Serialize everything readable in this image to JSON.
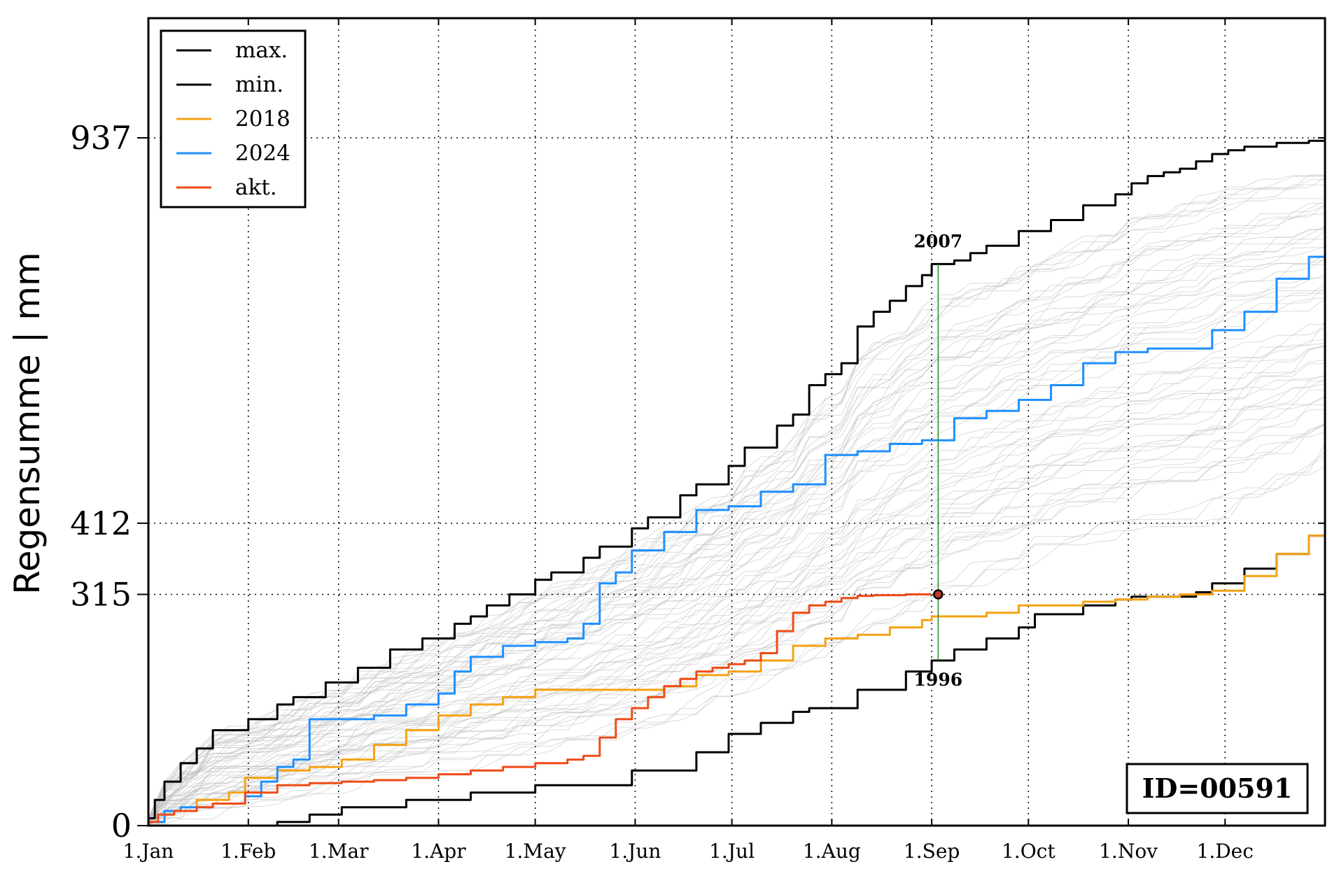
{
  "chart_data": {
    "type": "line",
    "title": "",
    "xlabel": "",
    "ylabel": "Regensumme | mm",
    "xlim": [
      0,
      365
    ],
    "ylim": [
      0,
      1100
    ],
    "x_ticks": [
      {
        "day": 0,
        "label": "1.Jan"
      },
      {
        "day": 31,
        "label": "1.Feb"
      },
      {
        "day": 59,
        "label": "1.Mar"
      },
      {
        "day": 90,
        "label": "1.Apr"
      },
      {
        "day": 120,
        "label": "1.May"
      },
      {
        "day": 151,
        "label": "1.Jun"
      },
      {
        "day": 181,
        "label": "1.Jul"
      },
      {
        "day": 212,
        "label": "1.Aug"
      },
      {
        "day": 243,
        "label": "1.Sep"
      },
      {
        "day": 273,
        "label": "1.Oct"
      },
      {
        "day": 304,
        "label": "1.Nov"
      },
      {
        "day": 334,
        "label": "1.Dec"
      }
    ],
    "y_ticks": [
      0,
      315,
      412,
      937
    ],
    "grid": "dotted",
    "legend_position": "top-left",
    "series": [
      {
        "name": "max.",
        "color": "#000000",
        "x": [
          0,
          2,
          5,
          10,
          15,
          20,
          31,
          40,
          45,
          55,
          65,
          75,
          85,
          95,
          100,
          105,
          112,
          120,
          125,
          135,
          140,
          150,
          155,
          165,
          170,
          180,
          185,
          195,
          200,
          205,
          210,
          215,
          220,
          225,
          230,
          235,
          240,
          243,
          250,
          255,
          260,
          270,
          280,
          290,
          300,
          305,
          310,
          315,
          320,
          325,
          330,
          335,
          340,
          345,
          350,
          355,
          360,
          365
        ],
        "y": [
          10,
          35,
          60,
          85,
          105,
          130,
          145,
          165,
          175,
          195,
          215,
          240,
          255,
          275,
          285,
          300,
          315,
          335,
          345,
          365,
          380,
          405,
          420,
          450,
          465,
          490,
          515,
          545,
          560,
          600,
          615,
          630,
          680,
          700,
          715,
          735,
          750,
          765,
          770,
          780,
          790,
          810,
          825,
          845,
          860,
          875,
          885,
          890,
          895,
          905,
          915,
          920,
          925,
          925,
          930,
          930,
          933,
          937
        ]
      },
      {
        "name": "min.",
        "color": "#000000",
        "x": [
          0,
          15,
          30,
          40,
          50,
          60,
          80,
          100,
          120,
          150,
          170,
          180,
          190,
          200,
          205,
          220,
          235,
          243,
          250,
          260,
          270,
          275,
          290,
          300,
          305,
          325,
          330,
          340,
          350,
          360,
          365
        ],
        "y": [
          0,
          0,
          0,
          5,
          15,
          25,
          35,
          45,
          55,
          75,
          100,
          125,
          140,
          155,
          160,
          185,
          210,
          225,
          240,
          255,
          270,
          288,
          300,
          308,
          312,
          318,
          330,
          350,
          370,
          395,
          412
        ]
      },
      {
        "name": "2018",
        "color": "#f5a214",
        "x": [
          0,
          5,
          15,
          25,
          30,
          40,
          50,
          60,
          70,
          80,
          90,
          100,
          110,
          120,
          130,
          140,
          150,
          160,
          170,
          180,
          190,
          200,
          210,
          220,
          230,
          240,
          243,
          250,
          260,
          270,
          280,
          290,
          300,
          310,
          320,
          330,
          340,
          350,
          360,
          365
        ],
        "y": [
          5,
          20,
          35,
          45,
          65,
          75,
          80,
          90,
          110,
          130,
          150,
          165,
          175,
          185,
          185,
          185,
          185,
          190,
          205,
          210,
          225,
          245,
          255,
          260,
          270,
          280,
          285,
          285,
          290,
          300,
          300,
          305,
          308,
          312,
          315,
          320,
          340,
          370,
          395,
          412
        ]
      },
      {
        "name": "2024",
        "color": "#1e90ff",
        "x": [
          0,
          5,
          10,
          20,
          30,
          35,
          40,
          45,
          50,
          60,
          70,
          80,
          90,
          95,
          100,
          110,
          120,
          130,
          135,
          140,
          145,
          150,
          160,
          170,
          180,
          190,
          200,
          210,
          220,
          230,
          240,
          243,
          250,
          260,
          270,
          280,
          290,
          300,
          310,
          320,
          330,
          340,
          350,
          360,
          365
        ],
        "y": [
          5,
          20,
          25,
          30,
          40,
          60,
          80,
          90,
          145,
          145,
          150,
          165,
          180,
          210,
          230,
          245,
          250,
          255,
          275,
          330,
          345,
          375,
          400,
          430,
          435,
          455,
          465,
          505,
          510,
          520,
          525,
          525,
          555,
          565,
          580,
          600,
          630,
          645,
          650,
          650,
          675,
          700,
          745,
          775,
          780
        ]
      },
      {
        "name": "akt.",
        "color": "#ee4b16",
        "x": [
          0,
          3,
          8,
          15,
          20,
          30,
          40,
          50,
          60,
          70,
          80,
          90,
          100,
          110,
          120,
          130,
          135,
          140,
          145,
          150,
          155,
          160,
          165,
          170,
          175,
          180,
          185,
          190,
          195,
          200,
          205,
          210,
          215,
          220,
          225,
          230,
          235,
          240,
          243
        ],
        "y": [
          5,
          15,
          20,
          25,
          30,
          45,
          55,
          58,
          60,
          62,
          65,
          70,
          75,
          80,
          85,
          90,
          95,
          120,
          145,
          160,
          175,
          190,
          200,
          210,
          215,
          220,
          225,
          235,
          265,
          290,
          300,
          305,
          310,
          313,
          314,
          314,
          315,
          315,
          315
        ]
      }
    ],
    "annotations": [
      {
        "text": "2007",
        "x": 245,
        "y": 765
      },
      {
        "text": "1996",
        "x": 245,
        "y": 225
      }
    ],
    "marker": {
      "x": 245,
      "y": 315
    },
    "vertical_line": {
      "x": 245,
      "y_from": 225,
      "y_to": 765,
      "color": "#228b22"
    },
    "background_series": {
      "count": 60,
      "color": "#bdbdbd"
    },
    "id_box": {
      "text": "ID=00591"
    }
  }
}
